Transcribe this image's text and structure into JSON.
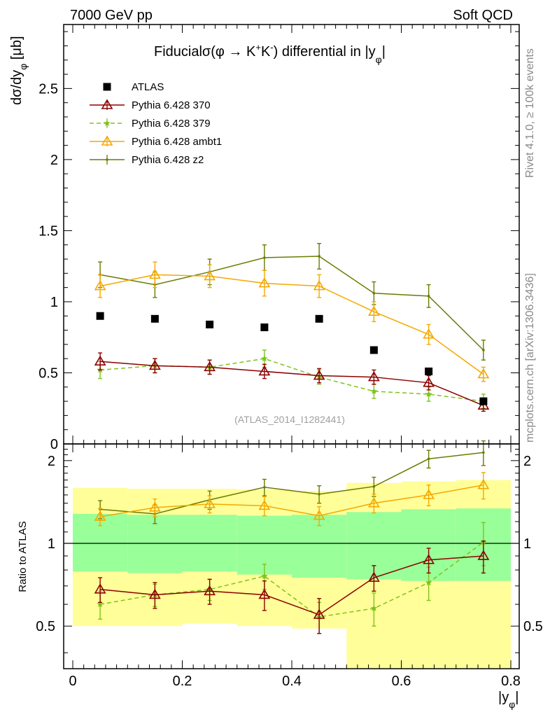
{
  "header": {
    "left": "7000 GeV pp",
    "right": "Soft QCD"
  },
  "side_text": {
    "rivet": "Rivet 4.1.0, ≥ 100k events",
    "mcplots": "mcplots.cern.ch [arXiv:1306.3436]"
  },
  "colors": {
    "atlas": "#000000",
    "p370": "#8b0000",
    "p379": "#7ec31d",
    "ambt1": "#f5a800",
    "z2": "#6b7b00",
    "band_outer": "#fffe99",
    "band_inner": "#99ff99"
  },
  "chart_data": [
    {
      "type": "line",
      "panel": "main",
      "title_parts": {
        "prefix": "Fiducial",
        "sigma": "σ(φ →  K",
        "sup1": "+",
        "mid": "K",
        "sup2": "-",
        "suffix": ") differential in |y",
        "sub": "φ",
        "end": "|"
      },
      "ylabel_parts": {
        "main": "dσ/dy",
        "sub": "φ",
        "unit": " [μb]"
      },
      "analysis_label": "(ATLAS_2014_I1282441)",
      "xlim": [
        0,
        0.8
      ],
      "ylim": [
        0,
        2.95
      ],
      "yticks": [
        0,
        0.5,
        1,
        1.5,
        2,
        2.5
      ],
      "ytick_labels": [
        "0",
        "0.5",
        "1",
        "1.5",
        "2",
        "2.5"
      ],
      "x": [
        0.05,
        0.15,
        0.25,
        0.35,
        0.45,
        0.55,
        0.65,
        0.75
      ],
      "series": [
        {
          "name": "ATLAS",
          "key": "atlas",
          "style": "square",
          "values": [
            0.9,
            0.88,
            0.84,
            0.82,
            0.88,
            0.66,
            0.51,
            0.3
          ],
          "errors": [
            0,
            0,
            0,
            0,
            0,
            0,
            0,
            0
          ]
        },
        {
          "name": "Pythia 6.428 370",
          "key": "p370",
          "style": "triangle",
          "values": [
            0.58,
            0.55,
            0.54,
            0.51,
            0.48,
            0.47,
            0.43,
            0.27
          ],
          "errors": [
            0.06,
            0.05,
            0.05,
            0.05,
            0.05,
            0.05,
            0.05,
            0.04
          ]
        },
        {
          "name": "Pythia 6.428 379",
          "key": "p379",
          "style": "star",
          "values": [
            0.52,
            0.55,
            0.54,
            0.6,
            0.47,
            0.37,
            0.35,
            0.3
          ],
          "errors": [
            0.06,
            0.05,
            0.05,
            0.06,
            0.05,
            0.05,
            0.05,
            0.05
          ]
        },
        {
          "name": "Pythia 6.428 ambt1",
          "key": "ambt1",
          "style": "triangle",
          "values": [
            1.11,
            1.19,
            1.18,
            1.13,
            1.11,
            0.93,
            0.77,
            0.49
          ],
          "errors": [
            0.08,
            0.09,
            0.08,
            0.09,
            0.08,
            0.07,
            0.07,
            0.05
          ]
        },
        {
          "name": "Pythia 6.428 z2",
          "key": "z2",
          "style": "dot",
          "values": [
            1.19,
            1.12,
            1.21,
            1.31,
            1.32,
            1.06,
            1.04,
            0.66
          ],
          "errors": [
            0.09,
            0.09,
            0.09,
            0.09,
            0.09,
            0.08,
            0.08,
            0.07
          ]
        }
      ]
    },
    {
      "type": "line",
      "panel": "ratio",
      "ylabel": "Ratio to ATLAS",
      "xlabel_parts": {
        "main": "|y",
        "sub": "φ",
        "end": "|"
      },
      "xlim": [
        0,
        0.8
      ],
      "ylim": [
        0.35,
        2.3
      ],
      "yticks": [
        0.5,
        1,
        2
      ],
      "ytick_labels": [
        "0.5",
        "1",
        "2"
      ],
      "xticks": [
        0,
        0.2,
        0.4,
        0.6,
        0.8
      ],
      "xtick_labels": [
        "0",
        "0.2",
        "0.4",
        "0.6",
        "0.8"
      ],
      "x": [
        0.05,
        0.15,
        0.25,
        0.35,
        0.45,
        0.55,
        0.65,
        0.75
      ],
      "bands": {
        "edges": [
          0.0,
          0.1,
          0.2,
          0.3,
          0.4,
          0.5,
          0.6,
          0.7,
          0.8
        ],
        "outer_low": [
          0.5,
          0.5,
          0.51,
          0.5,
          0.49,
          0.35,
          0.35,
          0.35
        ],
        "outer_high": [
          1.59,
          1.58,
          1.58,
          1.57,
          1.55,
          1.66,
          1.68,
          1.7
        ],
        "inner_low": [
          0.79,
          0.78,
          0.79,
          0.77,
          0.75,
          0.74,
          0.73,
          0.73
        ],
        "inner_high": [
          1.28,
          1.27,
          1.27,
          1.26,
          1.27,
          1.3,
          1.33,
          1.34
        ]
      },
      "series": [
        {
          "name": "Pythia 6.428 370",
          "key": "p370",
          "style": "triangle",
          "values": [
            0.68,
            0.65,
            0.67,
            0.65,
            0.55,
            0.75,
            0.87,
            0.9
          ],
          "errors": [
            0.07,
            0.07,
            0.07,
            0.08,
            0.08,
            0.08,
            0.09,
            0.12
          ]
        },
        {
          "name": "Pythia 6.428 379",
          "key": "p379",
          "style": "star",
          "values": [
            0.6,
            0.65,
            0.68,
            0.76,
            0.54,
            0.58,
            0.72,
            1.01
          ],
          "errors": [
            0.07,
            0.06,
            0.06,
            0.08,
            0.07,
            0.08,
            0.1,
            0.18
          ]
        },
        {
          "name": "Pythia 6.428 ambt1",
          "key": "ambt1",
          "style": "triangle",
          "values": [
            1.25,
            1.35,
            1.39,
            1.37,
            1.26,
            1.4,
            1.5,
            1.63
          ],
          "errors": [
            0.09,
            0.1,
            0.1,
            0.11,
            0.1,
            0.11,
            0.13,
            0.18
          ]
        },
        {
          "name": "Pythia 6.428 z2",
          "key": "z2",
          "style": "dot",
          "values": [
            1.33,
            1.28,
            1.44,
            1.6,
            1.51,
            1.61,
            2.03,
            2.14
          ],
          "errors": [
            0.1,
            0.1,
            0.11,
            0.11,
            0.11,
            0.13,
            0.15,
            0.22
          ]
        }
      ]
    }
  ]
}
